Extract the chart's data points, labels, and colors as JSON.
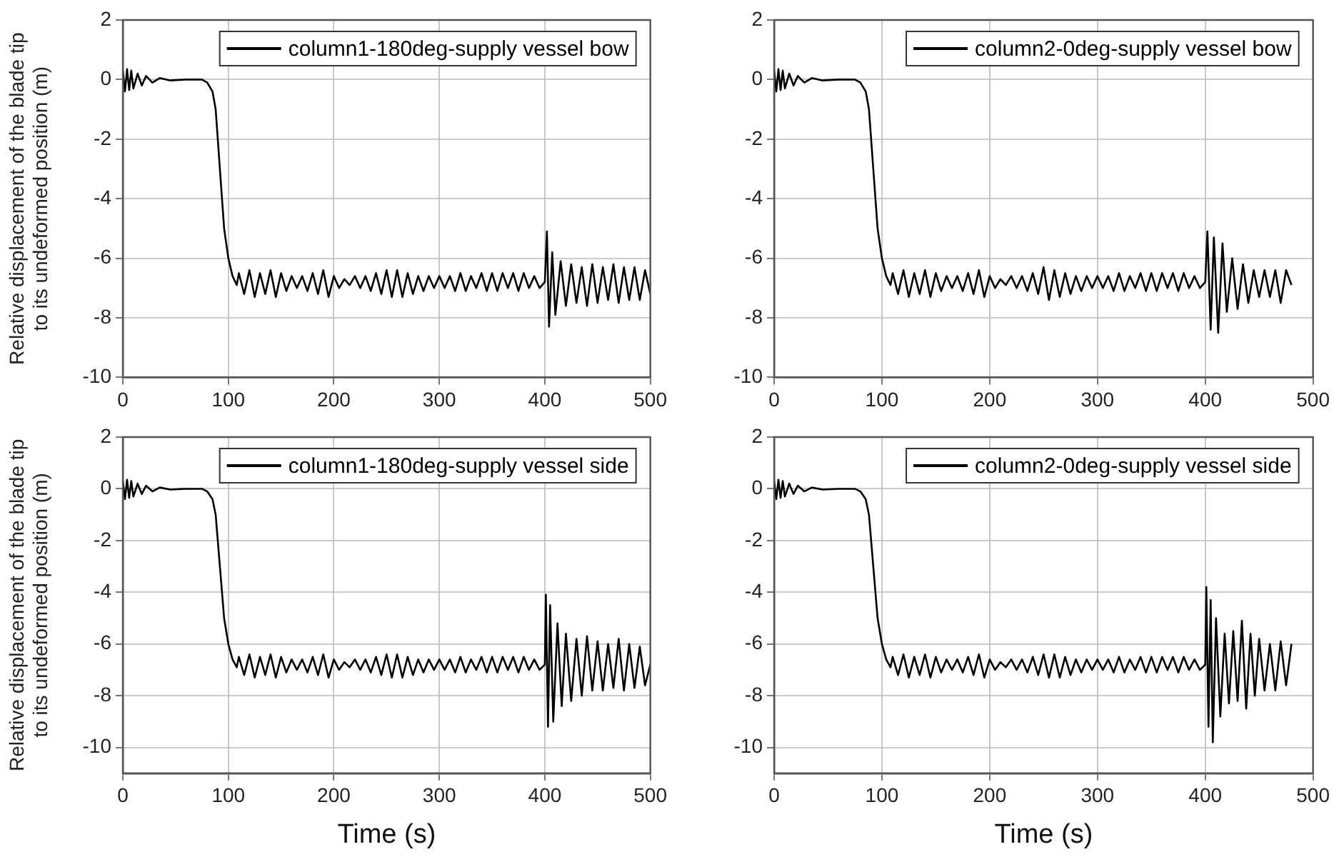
{
  "chart_data": [
    {
      "type": "line",
      "ylabel": "Relative displacement of the blade tip\nto its undeformed position (m)",
      "x": [
        0,
        2,
        4,
        6,
        8,
        10,
        14,
        18,
        22,
        28,
        35,
        45,
        60,
        75,
        80,
        85,
        88,
        92,
        96,
        100,
        104,
        108,
        110,
        115,
        120,
        125,
        130,
        135,
        140,
        145,
        150,
        155,
        160,
        165,
        170,
        175,
        180,
        185,
        190,
        195,
        200,
        205,
        210,
        215,
        220,
        225,
        230,
        235,
        240,
        245,
        250,
        255,
        260,
        265,
        270,
        275,
        280,
        285,
        290,
        295,
        300,
        305,
        310,
        315,
        320,
        325,
        330,
        335,
        340,
        345,
        350,
        355,
        360,
        365,
        370,
        375,
        380,
        385,
        390,
        395,
        400,
        402,
        404,
        407,
        410,
        415,
        420,
        425,
        430,
        435,
        440,
        445,
        450,
        455,
        460,
        465,
        470,
        475,
        480,
        485,
        490,
        495,
        500
      ],
      "series": [
        {
          "name": "column1-180deg-supply vessel bow",
          "color": "#000000",
          "values": [
            0.3,
            -0.4,
            0.35,
            -0.35,
            0.3,
            -0.3,
            0.2,
            -0.2,
            0.12,
            -0.1,
            0.05,
            -0.03,
            0,
            0,
            -0.1,
            -0.4,
            -1,
            -3,
            -5,
            -6,
            -6.6,
            -6.9,
            -6.5,
            -7.2,
            -6.4,
            -7.3,
            -6.5,
            -7.2,
            -6.4,
            -7.3,
            -6.5,
            -7.1,
            -6.6,
            -7.0,
            -6.6,
            -7.1,
            -6.5,
            -7.2,
            -6.4,
            -7.3,
            -6.6,
            -7.0,
            -6.7,
            -6.9,
            -6.6,
            -7.0,
            -6.6,
            -7.1,
            -6.5,
            -7.2,
            -6.4,
            -7.3,
            -6.4,
            -7.3,
            -6.5,
            -7.2,
            -6.6,
            -7.1,
            -6.6,
            -7.0,
            -6.6,
            -7.0,
            -6.6,
            -7.1,
            -6.5,
            -7.1,
            -6.6,
            -7.0,
            -6.5,
            -7.1,
            -6.5,
            -7.1,
            -6.5,
            -7.0,
            -6.5,
            -7.1,
            -6.5,
            -7.0,
            -6.6,
            -7.0,
            -6.8,
            -5.1,
            -8.3,
            -5.8,
            -7.9,
            -6.1,
            -7.6,
            -6.2,
            -7.5,
            -6.3,
            -7.6,
            -6.2,
            -7.5,
            -6.3,
            -7.4,
            -6.2,
            -7.5,
            -6.3,
            -7.4,
            -6.3,
            -7.4,
            -6.4,
            -7.2
          ]
        }
      ],
      "xlim": [
        0,
        500
      ],
      "xticks": [
        0,
        100,
        200,
        300,
        400,
        500
      ],
      "ylim": [
        -10,
        2
      ],
      "yticks": [
        -10,
        -8,
        -6,
        -4,
        -2,
        0,
        2
      ],
      "grid": true,
      "legend": "top right"
    },
    {
      "type": "line",
      "x": [
        0,
        2,
        4,
        6,
        8,
        10,
        14,
        18,
        22,
        28,
        35,
        45,
        60,
        75,
        80,
        85,
        88,
        92,
        96,
        100,
        104,
        108,
        110,
        115,
        120,
        125,
        130,
        135,
        140,
        145,
        150,
        155,
        160,
        165,
        170,
        175,
        180,
        185,
        190,
        195,
        200,
        205,
        210,
        215,
        220,
        225,
        230,
        235,
        240,
        245,
        250,
        255,
        260,
        265,
        270,
        275,
        280,
        285,
        290,
        295,
        300,
        305,
        310,
        315,
        320,
        325,
        330,
        335,
        340,
        345,
        350,
        355,
        360,
        365,
        370,
        375,
        380,
        385,
        390,
        395,
        400,
        402,
        405,
        408,
        412,
        416,
        420,
        425,
        430,
        435,
        440,
        445,
        450,
        455,
        460,
        465,
        470,
        475,
        480
      ],
      "series": [
        {
          "name": "column2-0deg-supply vessel bow",
          "color": "#000000",
          "values": [
            0.3,
            -0.4,
            0.35,
            -0.35,
            0.3,
            -0.3,
            0.2,
            -0.2,
            0.12,
            -0.1,
            0.05,
            -0.03,
            0,
            0,
            -0.1,
            -0.4,
            -1,
            -3,
            -5,
            -6,
            -6.6,
            -6.9,
            -6.5,
            -7.2,
            -6.4,
            -7.3,
            -6.5,
            -7.2,
            -6.4,
            -7.3,
            -6.5,
            -7.1,
            -6.6,
            -7.0,
            -6.6,
            -7.1,
            -6.5,
            -7.2,
            -6.4,
            -7.3,
            -6.6,
            -7.0,
            -6.7,
            -6.9,
            -6.6,
            -7.0,
            -6.6,
            -7.1,
            -6.5,
            -7.2,
            -6.3,
            -7.4,
            -6.4,
            -7.3,
            -6.5,
            -7.2,
            -6.6,
            -7.1,
            -6.6,
            -7.0,
            -6.6,
            -7.0,
            -6.6,
            -7.1,
            -6.5,
            -7.1,
            -6.6,
            -7.0,
            -6.5,
            -7.1,
            -6.5,
            -7.1,
            -6.5,
            -7.0,
            -6.5,
            -7.1,
            -6.5,
            -7.0,
            -6.6,
            -7.0,
            -6.8,
            -5.1,
            -8.4,
            -5.3,
            -8.5,
            -5.5,
            -7.8,
            -6.0,
            -7.7,
            -6.2,
            -7.5,
            -6.4,
            -7.3,
            -6.4,
            -7.3,
            -6.4,
            -7.5,
            -6.4,
            -6.9
          ]
        }
      ],
      "xlim": [
        0,
        500
      ],
      "xticks": [
        0,
        100,
        200,
        300,
        400,
        500
      ],
      "ylim": [
        -10,
        2
      ],
      "yticks": [
        -10,
        -8,
        -6,
        -4,
        -2,
        0,
        2
      ],
      "grid": true,
      "legend": "top right"
    },
    {
      "type": "line",
      "xlabel": "Time (s)",
      "ylabel": "Relative displacement of the blade tip\nto its undeformed position (m)",
      "x": [
        0,
        2,
        4,
        6,
        8,
        10,
        14,
        18,
        22,
        28,
        35,
        45,
        60,
        75,
        80,
        85,
        88,
        92,
        96,
        100,
        104,
        108,
        110,
        115,
        120,
        125,
        130,
        135,
        140,
        145,
        150,
        155,
        160,
        165,
        170,
        175,
        180,
        185,
        190,
        195,
        200,
        205,
        210,
        215,
        220,
        225,
        230,
        235,
        240,
        245,
        250,
        255,
        260,
        265,
        270,
        275,
        280,
        285,
        290,
        295,
        300,
        305,
        310,
        315,
        320,
        325,
        330,
        335,
        340,
        345,
        350,
        355,
        360,
        365,
        370,
        375,
        380,
        385,
        390,
        395,
        400,
        401,
        403,
        405,
        408,
        412,
        416,
        420,
        425,
        430,
        435,
        440,
        445,
        450,
        455,
        460,
        465,
        470,
        475,
        480,
        485,
        490,
        495,
        500
      ],
      "series": [
        {
          "name": "column1-180deg-supply vessel side",
          "color": "#000000",
          "values": [
            0.3,
            -0.4,
            0.35,
            -0.35,
            0.3,
            -0.3,
            0.2,
            -0.2,
            0.12,
            -0.1,
            0.05,
            -0.03,
            0,
            0,
            -0.1,
            -0.4,
            -1,
            -3,
            -5,
            -6,
            -6.6,
            -6.9,
            -6.5,
            -7.2,
            -6.4,
            -7.3,
            -6.5,
            -7.2,
            -6.4,
            -7.3,
            -6.5,
            -7.1,
            -6.6,
            -7.0,
            -6.6,
            -7.1,
            -6.5,
            -7.2,
            -6.4,
            -7.3,
            -6.6,
            -7.0,
            -6.7,
            -6.9,
            -6.6,
            -7.0,
            -6.6,
            -7.1,
            -6.5,
            -7.2,
            -6.4,
            -7.3,
            -6.4,
            -7.3,
            -6.5,
            -7.2,
            -6.6,
            -7.1,
            -6.6,
            -7.0,
            -6.6,
            -7.0,
            -6.6,
            -7.1,
            -6.5,
            -7.1,
            -6.6,
            -7.0,
            -6.5,
            -7.1,
            -6.5,
            -7.1,
            -6.5,
            -7.0,
            -6.5,
            -7.1,
            -6.5,
            -7.0,
            -6.6,
            -7.0,
            -6.8,
            -4.1,
            -9.2,
            -4.5,
            -9.0,
            -5.2,
            -8.4,
            -5.6,
            -8.2,
            -5.8,
            -8.0,
            -5.7,
            -7.8,
            -5.9,
            -7.8,
            -6.0,
            -7.7,
            -5.8,
            -7.8,
            -6.0,
            -7.7,
            -6.1,
            -7.6,
            -6.8
          ]
        }
      ],
      "xlim": [
        0,
        500
      ],
      "xticks": [
        0,
        100,
        200,
        300,
        400,
        500
      ],
      "ylim": [
        -11,
        2
      ],
      "yticks": [
        -10,
        -8,
        -6,
        -4,
        -2,
        0,
        2
      ],
      "grid": true,
      "legend": "top right"
    },
    {
      "type": "line",
      "xlabel": "Time (s)",
      "x": [
        0,
        2,
        4,
        6,
        8,
        10,
        14,
        18,
        22,
        28,
        35,
        45,
        60,
        75,
        80,
        85,
        88,
        92,
        96,
        100,
        104,
        108,
        110,
        115,
        120,
        125,
        130,
        135,
        140,
        145,
        150,
        155,
        160,
        165,
        170,
        175,
        180,
        185,
        190,
        195,
        200,
        205,
        210,
        215,
        220,
        225,
        230,
        235,
        240,
        245,
        250,
        255,
        260,
        265,
        270,
        275,
        280,
        285,
        290,
        295,
        300,
        305,
        310,
        315,
        320,
        325,
        330,
        335,
        340,
        345,
        350,
        355,
        360,
        365,
        370,
        375,
        380,
        385,
        390,
        395,
        400,
        401,
        403,
        405,
        407,
        410,
        414,
        418,
        422,
        426,
        430,
        434,
        438,
        442,
        446,
        450,
        455,
        460,
        465,
        470,
        475,
        480
      ],
      "series": [
        {
          "name": "column2-0deg-supply vessel side",
          "color": "#000000",
          "values": [
            0.3,
            -0.4,
            0.35,
            -0.35,
            0.3,
            -0.3,
            0.2,
            -0.2,
            0.12,
            -0.1,
            0.05,
            -0.03,
            0,
            0,
            -0.1,
            -0.4,
            -1,
            -3,
            -5,
            -6,
            -6.6,
            -6.9,
            -6.5,
            -7.2,
            -6.4,
            -7.3,
            -6.5,
            -7.2,
            -6.4,
            -7.3,
            -6.5,
            -7.1,
            -6.6,
            -7.0,
            -6.6,
            -7.1,
            -6.5,
            -7.2,
            -6.4,
            -7.3,
            -6.6,
            -7.0,
            -6.7,
            -6.9,
            -6.6,
            -7.0,
            -6.6,
            -7.1,
            -6.5,
            -7.2,
            -6.4,
            -7.3,
            -6.4,
            -7.3,
            -6.5,
            -7.2,
            -6.6,
            -7.1,
            -6.6,
            -7.0,
            -6.6,
            -7.0,
            -6.6,
            -7.1,
            -6.5,
            -7.1,
            -6.6,
            -7.0,
            -6.5,
            -7.1,
            -6.5,
            -7.1,
            -6.5,
            -7.0,
            -6.5,
            -7.1,
            -6.5,
            -7.0,
            -6.6,
            -7.0,
            -6.8,
            -3.8,
            -9.2,
            -4.3,
            -9.8,
            -5.0,
            -8.8,
            -5.6,
            -8.3,
            -5.5,
            -8.2,
            -5.1,
            -8.5,
            -5.6,
            -8.0,
            -5.8,
            -7.8,
            -6.0,
            -7.8,
            -5.9,
            -7.6,
            -6.0
          ]
        }
      ],
      "xlim": [
        0,
        500
      ],
      "xticks": [
        0,
        100,
        200,
        300,
        400,
        500
      ],
      "ylim": [
        -11,
        2
      ],
      "yticks": [
        -10,
        -8,
        -6,
        -4,
        -2,
        0,
        2
      ],
      "grid": true,
      "legend": "top right"
    }
  ]
}
